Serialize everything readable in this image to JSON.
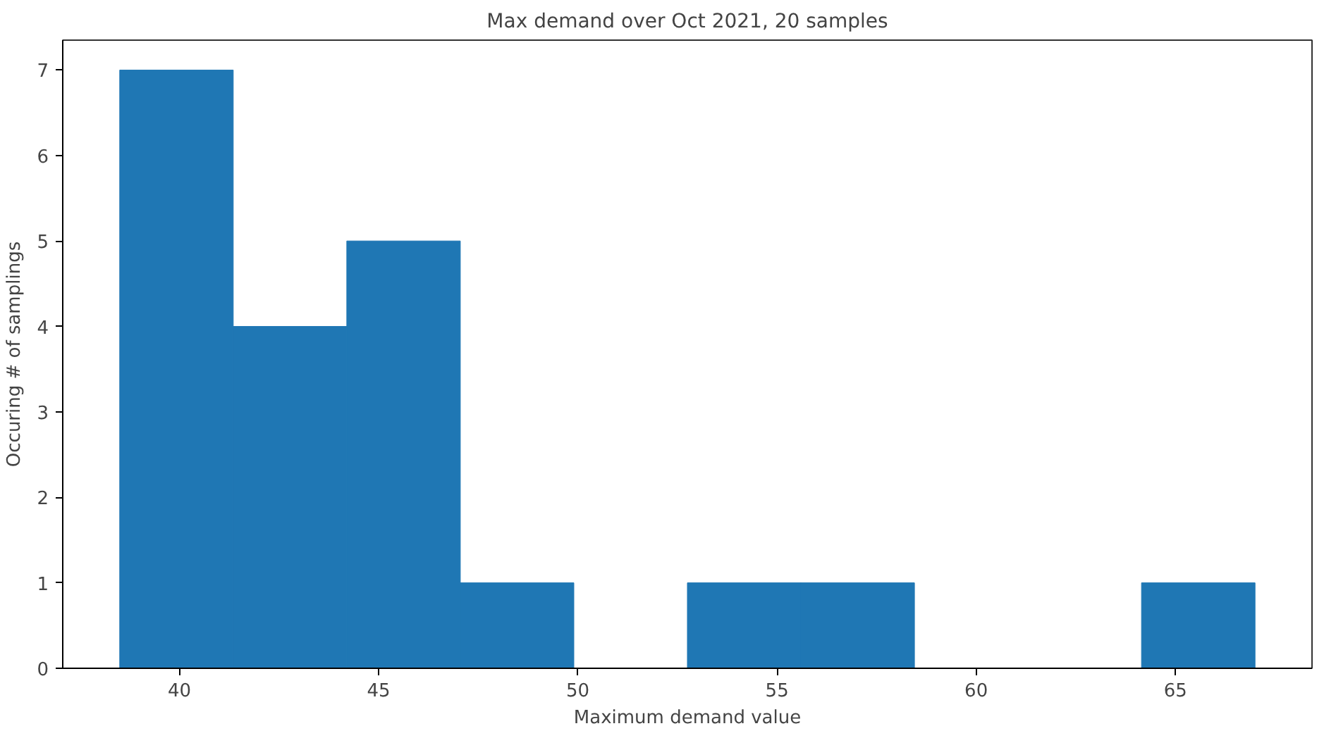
{
  "chart_data": {
    "type": "histogram",
    "title": "Max demand over Oct 2021, 20 samples",
    "xlabel": "Maximum demand value",
    "ylabel": "Occuring # of samplings",
    "bins": [
      38.5,
      41.35,
      44.2,
      47.05,
      49.9,
      52.75,
      55.6,
      58.45,
      61.3,
      64.15,
      67.0
    ],
    "values": [
      7,
      4,
      5,
      1,
      0,
      1,
      1,
      0,
      0,
      1
    ],
    "color": "#1f77b4",
    "xlim": [
      37.07,
      68.43
    ],
    "ylim": [
      0,
      7.35
    ],
    "xticks": [
      40,
      45,
      50,
      55,
      60,
      65
    ],
    "yticks": [
      0,
      1,
      2,
      3,
      4,
      5,
      6,
      7
    ],
    "grid": false
  }
}
